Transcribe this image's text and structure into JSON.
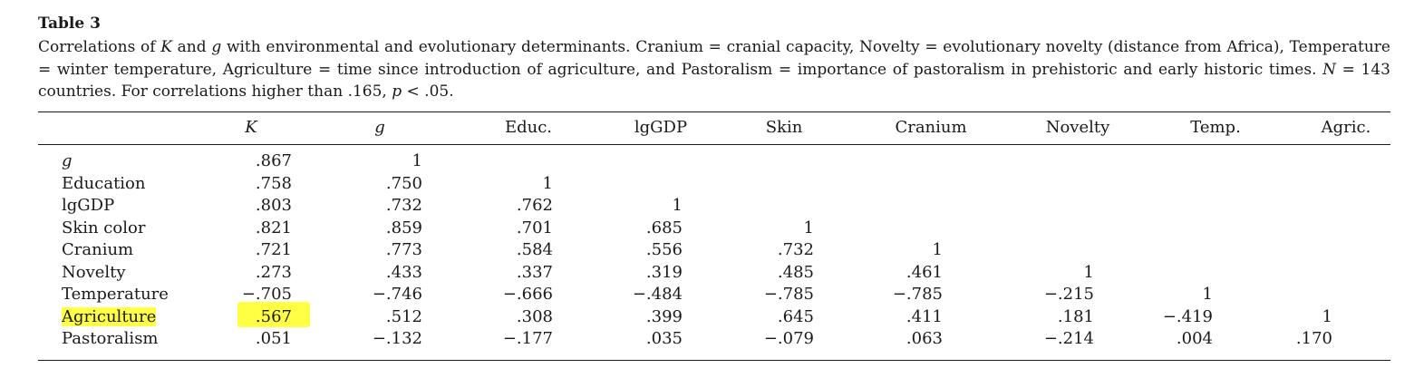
{
  "table_label": "Table 3",
  "caption": {
    "part1": "Correlations of ",
    "K": "K",
    "part2": " and ",
    "g": "g",
    "part3": " with environmental and evolutionary determinants. Cranium = cranial capacity, Novelty = evolutionary novelty (distance from Africa), Temperature = winter temperature, Agriculture = time since introduction of agriculture, and Pastoralism = importance of pastoralism in prehistoric and early historic times. ",
    "N": "N",
    "part4": " = 143 countries. For correlations higher than .165, ",
    "p": "p",
    "part5": " < .05."
  },
  "columns": [
    "K",
    "g",
    "Educ.",
    "lgGDP",
    "Skin",
    "Cranium",
    "Novelty",
    "Temp.",
    "Agric."
  ],
  "rows": [
    {
      "label": "g",
      "values": [
        ".867",
        "1",
        "",
        "",
        "",
        "",
        "",
        "",
        ""
      ]
    },
    {
      "label": "Education",
      "values": [
        ".758",
        ".750",
        "1",
        "",
        "",
        "",
        "",
        "",
        ""
      ]
    },
    {
      "label": "lgGDP",
      "values": [
        ".803",
        ".732",
        ".762",
        "1",
        "",
        "",
        "",
        "",
        ""
      ]
    },
    {
      "label": "Skin color",
      "values": [
        ".821",
        ".859",
        ".701",
        ".685",
        "1",
        "",
        "",
        "",
        ""
      ]
    },
    {
      "label": "Cranium",
      "values": [
        ".721",
        ".773",
        ".584",
        ".556",
        ".732",
        "1",
        "",
        "",
        ""
      ]
    },
    {
      "label": "Novelty",
      "values": [
        ".273",
        ".433",
        ".337",
        ".319",
        ".485",
        ".461",
        "1",
        "",
        ""
      ]
    },
    {
      "label": "Temperature",
      "values": [
        "−.705",
        "−.746",
        "−.666",
        "−.484",
        "−.785",
        "−.785",
        "−.215",
        "1",
        ""
      ]
    },
    {
      "label": "Agriculture",
      "values": [
        ".567",
        ".512",
        ".308",
        ".399",
        ".645",
        ".411",
        ".181",
        "−.419",
        "1"
      ]
    },
    {
      "label": "Pastoralism",
      "values": [
        ".051",
        "−.132",
        "−.177",
        ".035",
        "−.079",
        ".063",
        "−.214",
        ".004",
        ".170"
      ]
    }
  ],
  "highlight_color": "#ffff44",
  "highlighted_row": "Agriculture",
  "highlighted_cell": ".567"
}
